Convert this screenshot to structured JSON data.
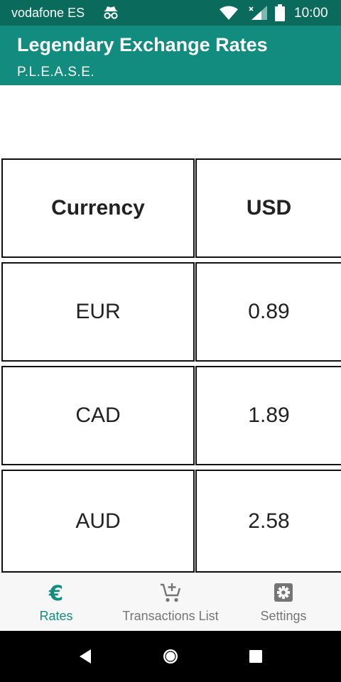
{
  "status_bar": {
    "carrier": "vodafone ES",
    "time": "10:00",
    "icons": [
      "incognito-icon",
      "wifi-icon",
      "signal-icon",
      "battery-icon"
    ]
  },
  "app_bar": {
    "title": "Legendary Exchange Rates",
    "subtitle": "P.L.E.A.S.E."
  },
  "table": {
    "headers": [
      "Currency",
      "USD"
    ],
    "rows": [
      {
        "currency": "EUR",
        "rate": "0.89"
      },
      {
        "currency": "CAD",
        "rate": "1.89"
      },
      {
        "currency": "AUD",
        "rate": "2.58"
      }
    ]
  },
  "bottom_nav": {
    "items": [
      {
        "label": "Rates",
        "icon": "euro-icon",
        "active": true
      },
      {
        "label": "Transactions List",
        "icon": "add-to-cart-icon",
        "active": false
      },
      {
        "label": "Settings",
        "icon": "settings-icon",
        "active": false
      }
    ]
  },
  "colors": {
    "status_bar": "#0a6b5d",
    "app_bar": "#128c7e",
    "accent": "#128c7e",
    "inactive": "#757575"
  }
}
